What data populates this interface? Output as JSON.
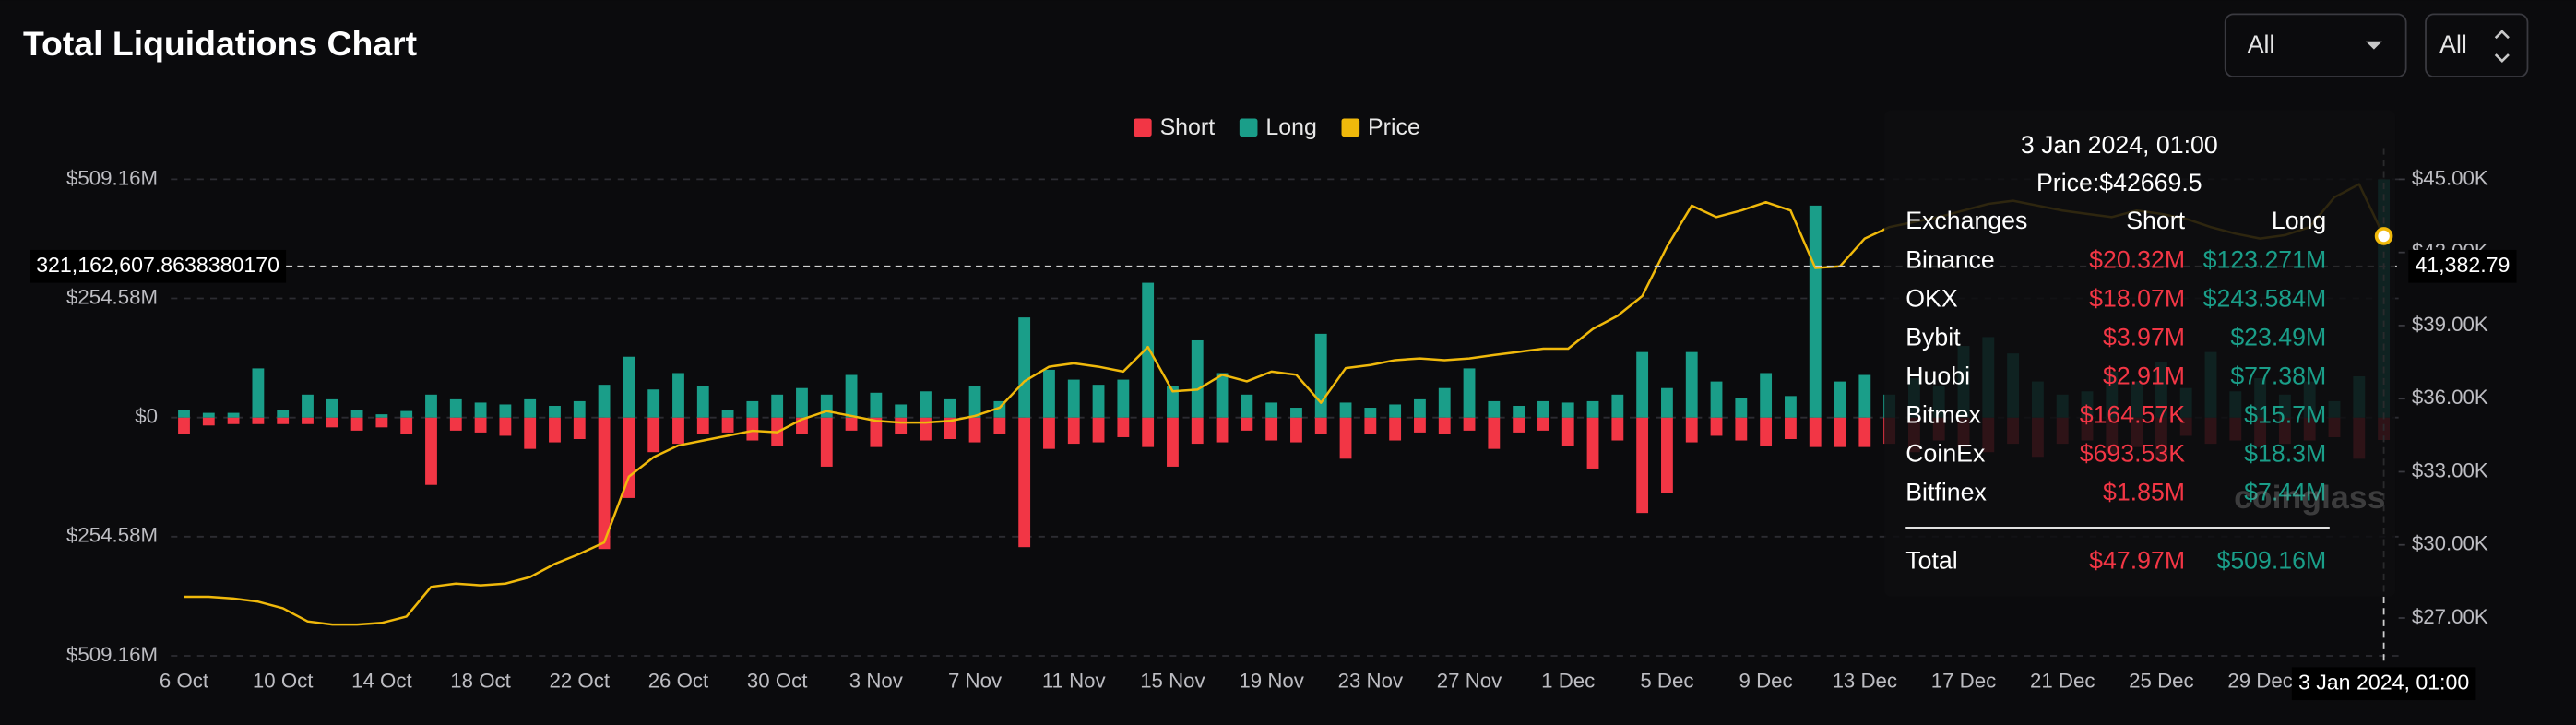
{
  "header": {
    "title": "Total Liquidations Chart",
    "filters": [
      "All",
      "All"
    ]
  },
  "chart_data": {
    "type": "bar",
    "categories": [
      "6 Oct",
      null,
      null,
      null,
      "10 Oct",
      null,
      null,
      null,
      "14 Oct",
      null,
      null,
      null,
      "18 Oct",
      null,
      null,
      null,
      "22 Oct",
      null,
      null,
      null,
      "26 Oct",
      null,
      null,
      null,
      "30 Oct",
      null,
      null,
      null,
      "3 Nov",
      null,
      null,
      null,
      "7 Nov",
      null,
      null,
      null,
      "11 Nov",
      null,
      null,
      null,
      "15 Nov",
      null,
      null,
      null,
      "19 Nov",
      null,
      null,
      null,
      "23 Nov",
      null,
      null,
      null,
      "27 Nov",
      null,
      null,
      null,
      "1 Dec",
      null,
      null,
      null,
      "5 Dec",
      null,
      null,
      null,
      "9 Dec",
      null,
      null,
      null,
      "13 Dec",
      null,
      null,
      null,
      "17 Dec",
      null,
      null,
      null,
      "21 Dec",
      null,
      null,
      null,
      "25 Dec",
      null,
      null,
      null,
      "29 Dec",
      null,
      null,
      null,
      null,
      null
    ],
    "series": [
      {
        "name": "Short",
        "color": "#f23645",
        "values": [
          -35,
          -17,
          -14,
          -14,
          -14,
          -14,
          -21,
          -28,
          -21,
          -35,
          -144,
          -28,
          -32,
          -39,
          -67,
          -53,
          -46,
          -281,
          -172,
          -74,
          -56,
          -35,
          -32,
          -49,
          -60,
          -35,
          -105,
          -28,
          -63,
          -35,
          -49,
          -46,
          -53,
          -35,
          -277,
          -67,
          -56,
          -53,
          -42,
          -63,
          -105,
          -56,
          -53,
          -28,
          -49,
          -53,
          -35,
          -88,
          -35,
          -49,
          -32,
          -35,
          -28,
          -67,
          -32,
          -28,
          -60,
          -109,
          -49,
          -204,
          -161,
          -53,
          -39,
          -49,
          -60,
          -46,
          -63,
          -63,
          -63,
          -56,
          -74,
          -49,
          -63,
          -74,
          -56,
          -84,
          -56,
          -49,
          -77,
          -63,
          -91,
          -39,
          -56,
          -49,
          -63,
          -56,
          -49,
          -42,
          -88,
          -47.97
        ]
      },
      {
        "name": "Long",
        "color": "#1a9e89",
        "values": [
          17,
          10,
          10,
          105,
          17,
          49,
          39,
          17,
          7,
          14,
          49,
          39,
          32,
          28,
          39,
          25,
          35,
          70,
          130,
          60,
          95,
          67,
          17,
          35,
          49,
          63,
          49,
          91,
          53,
          28,
          56,
          39,
          67,
          35,
          214,
          102,
          81,
          70,
          81,
          288,
          67,
          165,
          95,
          49,
          32,
          21,
          179,
          32,
          21,
          28,
          39,
          63,
          105,
          35,
          25,
          35,
          32,
          35,
          49,
          140,
          63,
          140,
          77,
          42,
          95,
          46,
          453,
          77,
          91,
          49,
          84,
          67,
          153,
          172,
          137,
          77,
          49,
          56,
          98,
          77,
          119,
          63,
          140,
          56,
          84,
          49,
          77,
          35,
          88,
          509.16
        ]
      },
      {
        "name": "Price",
        "color": "#f0b90b",
        "type": "line",
        "axis": "y2",
        "values": [
          27.87,
          27.87,
          27.8,
          27.67,
          27.4,
          26.86,
          26.73,
          26.73,
          26.8,
          27.06,
          28.28,
          28.41,
          28.34,
          28.41,
          28.68,
          29.22,
          29.63,
          30.1,
          32.8,
          33.6,
          34.08,
          34.28,
          34.48,
          34.68,
          34.62,
          35.15,
          35.49,
          35.29,
          35.09,
          35.02,
          35.02,
          35.09,
          35.29,
          35.63,
          36.71,
          37.31,
          37.45,
          37.31,
          37.11,
          38.12,
          36.3,
          36.37,
          36.98,
          36.71,
          37.11,
          36.98,
          35.83,
          37.25,
          37.38,
          37.58,
          37.65,
          37.58,
          37.65,
          37.79,
          37.92,
          38.05,
          38.05,
          38.86,
          39.4,
          40.21,
          42.24,
          43.92,
          43.45,
          43.72,
          44.06,
          43.72,
          41.36,
          41.43,
          42.57,
          43.04,
          43.25,
          43.45,
          43.72,
          43.99,
          44.12,
          43.92,
          43.72,
          43.58,
          43.45,
          43.72,
          43.58,
          43.38,
          43.04,
          42.77,
          42.57,
          42.71,
          43.04,
          44.26,
          44.8,
          42.6695
        ]
      }
    ],
    "ylim": [
      -509.16,
      509.16
    ],
    "yticks": [
      {
        "value": 509.16,
        "label": "$509.16M"
      },
      {
        "value": 254.58,
        "label": "$254.58M"
      },
      {
        "value": 0,
        "label": "$0"
      },
      {
        "value": -254.58,
        "label": "$254.58M"
      },
      {
        "value": -509.16,
        "label": "$509.16M"
      }
    ],
    "y2lim": [
      25.45,
      45
    ],
    "y2ticks": [
      {
        "value": 27,
        "label": "$27.00K"
      },
      {
        "value": 30,
        "label": "$30.00K"
      },
      {
        "value": 33,
        "label": "$33.00K"
      },
      {
        "value": 36,
        "label": "$36.00K"
      },
      {
        "value": 39,
        "label": "$39.00K"
      },
      {
        "value": 42,
        "label": "$42.00K"
      },
      {
        "value": 45,
        "label": "$45.00K"
      }
    ],
    "grid": true,
    "legend": "top"
  },
  "crosshair": {
    "left_label": "321,162,607.8638380170",
    "right_label": "41,382.79",
    "x_label": "3 Jan 2024, 01:00"
  },
  "tooltip": {
    "title": "3 Jan 2024, 01:00",
    "price": "Price:$42669.5",
    "columns": [
      "Exchanges",
      "Short",
      "Long"
    ],
    "rows": [
      [
        "Binance",
        "$20.32M",
        "$123.271M"
      ],
      [
        "OKX",
        "$18.07M",
        "$243.584M"
      ],
      [
        "Bybit",
        "$3.97M",
        "$23.49M"
      ],
      [
        "Huobi",
        "$2.91M",
        "$77.38M"
      ],
      [
        "Bitmex",
        "$164.57K",
        "$15.7M"
      ],
      [
        "CoinEx",
        "$693.53K",
        "$18.3M"
      ],
      [
        "Bitfinex",
        "$1.85M",
        "$7.44M"
      ]
    ],
    "total": [
      "Total",
      "$47.97M",
      "$509.16M"
    ]
  },
  "watermark": "coinglass"
}
